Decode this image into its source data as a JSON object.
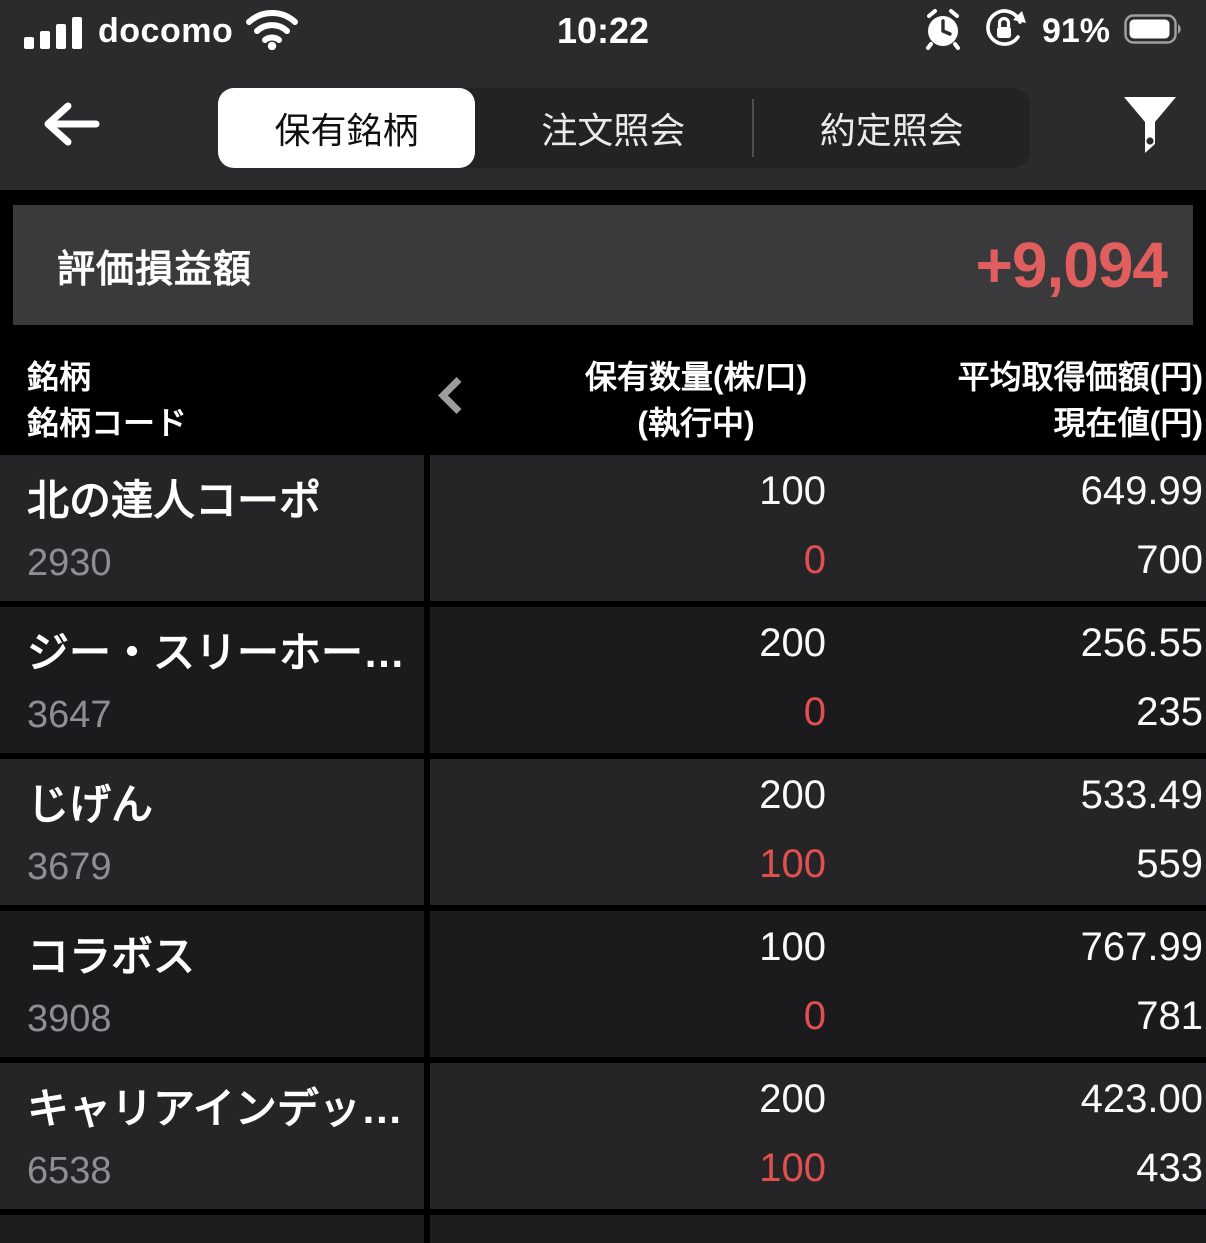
{
  "status_bar": {
    "carrier": "docomo",
    "time": "10:22",
    "battery_percent": "91%"
  },
  "nav": {
    "tabs": [
      {
        "label": "保有銘柄",
        "selected": true
      },
      {
        "label": "注文照会",
        "selected": false
      },
      {
        "label": "約定照会",
        "selected": false
      }
    ]
  },
  "summary": {
    "label": "評価損益額",
    "value": "+9,094"
  },
  "table": {
    "header": {
      "name_line1": "銘柄",
      "name_line2": "銘柄コード",
      "qty_line1": "保有数量(株/口)",
      "qty_line2": "(執行中)",
      "price_line1": "平均取得価額(円)",
      "price_line2": "現在値(円)"
    },
    "rows": [
      {
        "name": "北の達人コーポ",
        "code": "2930",
        "quantity": "100",
        "executing": "0",
        "avg_price": "649.99",
        "current_price": "700"
      },
      {
        "name": "ジー・スリーホー…",
        "code": "3647",
        "quantity": "200",
        "executing": "0",
        "avg_price": "256.55",
        "current_price": "235"
      },
      {
        "name": "じげん",
        "code": "3679",
        "quantity": "200",
        "executing": "100",
        "avg_price": "533.49",
        "current_price": "559"
      },
      {
        "name": "コラボス",
        "code": "3908",
        "quantity": "100",
        "executing": "0",
        "avg_price": "767.99",
        "current_price": "781"
      },
      {
        "name": "キャリアインデッ…",
        "code": "6538",
        "quantity": "200",
        "executing": "100",
        "avg_price": "423.00",
        "current_price": "433"
      }
    ]
  },
  "colors": {
    "profit_red": "#e05e5e",
    "cell_red": "#e24f4f",
    "top_bar_bg": "#2b2b2d",
    "panel_bg": "#3a3a3c",
    "row_odd_bg": "#252528",
    "row_even_bg": "#1b1b1e",
    "code_gray": "#8e8e93"
  }
}
